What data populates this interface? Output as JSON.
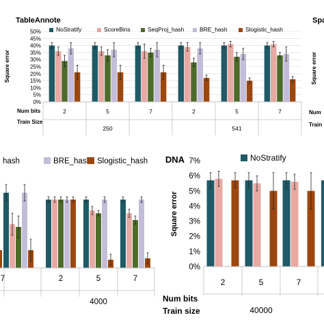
{
  "colors": {
    "NoStratify": "#1f5a66",
    "ScoreBins": "#e8a9a3",
    "SeqProj_hash": "#4d6b2a",
    "BRE_hash": "#c3bdd9",
    "Slogistic_hash": "#9c4710",
    "grid": "#d9d9d9",
    "axis": "#bfbfbf"
  },
  "section_title": "DNA",
  "chart_data": [
    {
      "id": "top-left",
      "type": "bar",
      "title": "TableAnnote",
      "ylabel": "Square error",
      "ylim": [
        0,
        0.5
      ],
      "yticks": [
        "0%",
        "5%",
        "10%",
        "15%",
        "20%",
        "25%",
        "30%",
        "35%",
        "40%",
        "45%",
        "50%"
      ],
      "legend_position": "top",
      "series_names": [
        "NoStratify",
        "ScoreBins",
        "SeqProj_hash",
        "BRE_hash",
        "Slogistic_hash"
      ],
      "row_labels": [
        "Num bits",
        "Train Size"
      ],
      "categories": [
        "2",
        "5",
        "7",
        "2",
        "5",
        "7"
      ],
      "groups": [
        "250",
        "541"
      ],
      "values": [
        [
          0.4,
          0.36,
          0.29,
          0.38,
          0.21
        ],
        [
          0.4,
          0.36,
          0.33,
          0.37,
          0.21
        ],
        [
          0.4,
          0.36,
          0.35,
          0.37,
          0.21
        ],
        [
          0.4,
          0.39,
          0.28,
          0.38,
          0.17
        ],
        [
          0.4,
          0.41,
          0.32,
          0.34,
          0.15
        ],
        [
          0.4,
          0.41,
          0.33,
          0.34,
          0.16
        ]
      ],
      "errors": [
        [
          0.02,
          0.03,
          0.04,
          0.04,
          0.05
        ],
        [
          0.02,
          0.03,
          0.04,
          0.05,
          0.05
        ],
        [
          0.02,
          0.05,
          0.03,
          0.05,
          0.05
        ],
        [
          0.02,
          0.03,
          0.03,
          0.04,
          0.02
        ],
        [
          0.02,
          0.02,
          0.03,
          0.04,
          0.02
        ],
        [
          0.02,
          0.02,
          0.02,
          0.05,
          0.02
        ]
      ]
    },
    {
      "id": "top-right-partial",
      "type": "bar",
      "title": "Spa",
      "ylabel": "Square error",
      "row_labels": [
        "Num",
        "Train"
      ]
    },
    {
      "id": "middle-left",
      "type": "bar",
      "legend": [
        "hash",
        "BRE_hash",
        "Slogistic_hash"
      ],
      "legend_position": "top",
      "ylim": [
        0,
        0.07
      ],
      "categories": [
        "7",
        "2",
        "5",
        "7"
      ],
      "category_series_partial": [
        [
          0.055,
          0.032,
          0.03,
          0.055,
          0.013
        ],
        [
          0.05,
          0.05,
          0.05,
          0.05,
          0.05
        ],
        [
          0.05,
          0.042,
          0.04,
          0.05,
          0.006
        ],
        [
          0.05,
          0.04,
          0.035,
          0.05,
          0.007
        ]
      ],
      "errors": [
        [
          0.006,
          0.008,
          0.008,
          0.006,
          0.008
        ],
        [
          0.002,
          0.002,
          0.002,
          0.002,
          0.002
        ],
        [
          0.002,
          0.003,
          0.002,
          0.002,
          0.004
        ],
        [
          0.002,
          0.003,
          0.003,
          0.002,
          0.004
        ]
      ],
      "clipped_first_value": 0.013,
      "groups": [
        "4000"
      ]
    },
    {
      "id": "middle-right",
      "type": "bar",
      "ylabel": "Square error",
      "ylim": [
        0,
        0.07
      ],
      "yticks": [
        "0%",
        "1%",
        "2%",
        "3%",
        "4%",
        "5%",
        "6%",
        "7%"
      ],
      "legend": [
        "NoStratify"
      ],
      "legend_position": "top",
      "row_labels": [
        "Num bits",
        "Train size"
      ],
      "categories": [
        "2",
        "5",
        "7"
      ],
      "groups": [
        "40000"
      ],
      "values": [
        [
          0.057,
          0.058,
          0.057
        ],
        [
          0.057,
          0.055,
          0.05
        ],
        [
          0.057,
          0.056,
          0.05
        ]
      ],
      "errors": [
        [
          0.005,
          0.005,
          0.005
        ],
        [
          0.005,
          0.005,
          0.012
        ],
        [
          0.005,
          0.005,
          0.012
        ]
      ],
      "clipped_extra_value": 0.057
    }
  ]
}
